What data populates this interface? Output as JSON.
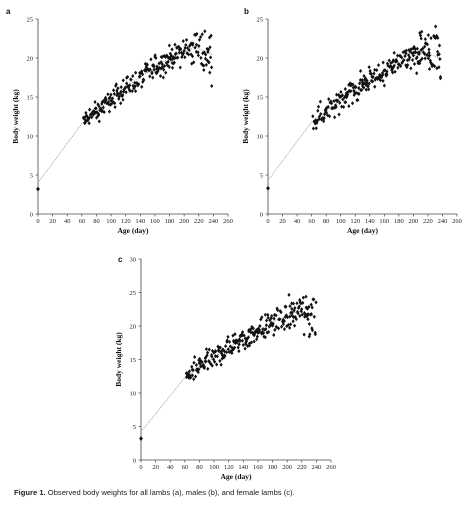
{
  "caption": {
    "label": "Figure 1.",
    "text": "Observed body weights for all lambs (a), males (b), and female lambs (c)."
  },
  "chart_data": [
    {
      "panel": "a",
      "type": "scatter",
      "xlabel": "Age (day)",
      "ylabel": "Body weight (kg)",
      "xlim": [
        0,
        260
      ],
      "ylim": [
        0,
        25
      ],
      "xticks": [
        0,
        20,
        40,
        60,
        80,
        100,
        120,
        140,
        160,
        180,
        200,
        220,
        240,
        260
      ],
      "yticks": [
        0,
        5,
        10,
        15,
        20,
        25
      ],
      "grid": false,
      "birth_point": [
        0,
        3.2
      ],
      "trend_points": [
        [
          0,
          4.0
        ],
        [
          60,
          11.6
        ],
        [
          120,
          16.3
        ],
        [
          180,
          20.0
        ],
        [
          215,
          21.4
        ],
        [
          240,
          20.4
        ]
      ],
      "observations": {
        "x_range": [
          62,
          238
        ],
        "noise_kg": 0.7,
        "spread_late_kg": 1.2
      }
    },
    {
      "panel": "b",
      "type": "scatter",
      "xlabel": "Age (day)",
      "ylabel": "Body weight (kg)",
      "xlim": [
        0,
        260
      ],
      "ylim": [
        0,
        25
      ],
      "xticks": [
        0,
        20,
        40,
        60,
        80,
        100,
        120,
        140,
        160,
        180,
        200,
        220,
        240,
        260
      ],
      "yticks": [
        0,
        5,
        10,
        15,
        20,
        25
      ],
      "grid": false,
      "birth_point": [
        0,
        3.3
      ],
      "trend_points": [
        [
          0,
          4.3
        ],
        [
          60,
          11.8
        ],
        [
          120,
          16.0
        ],
        [
          180,
          19.4
        ],
        [
          215,
          20.8
        ],
        [
          240,
          19.8
        ]
      ],
      "observations": {
        "x_range": [
          62,
          238
        ],
        "noise_kg": 0.75,
        "spread_late_kg": 1.6
      }
    },
    {
      "panel": "c",
      "type": "scatter",
      "xlabel": "Age (day)",
      "ylabel": "Body weight (kg)",
      "xlim": [
        0,
        260
      ],
      "ylim": [
        0,
        30
      ],
      "xticks": [
        0,
        20,
        40,
        60,
        80,
        100,
        120,
        140,
        160,
        180,
        200,
        220,
        240,
        260
      ],
      "yticks": [
        0,
        5,
        10,
        15,
        20,
        25,
        30
      ],
      "grid": false,
      "birth_point": [
        0,
        3.2
      ],
      "trend_points": [
        [
          0,
          4.2
        ],
        [
          60,
          12.3
        ],
        [
          120,
          16.8
        ],
        [
          180,
          20.6
        ],
        [
          215,
          22.2
        ],
        [
          240,
          21.4
        ]
      ],
      "observations": {
        "x_range": [
          62,
          240
        ],
        "noise_kg": 0.8,
        "spread_late_kg": 1.8
      }
    }
  ]
}
